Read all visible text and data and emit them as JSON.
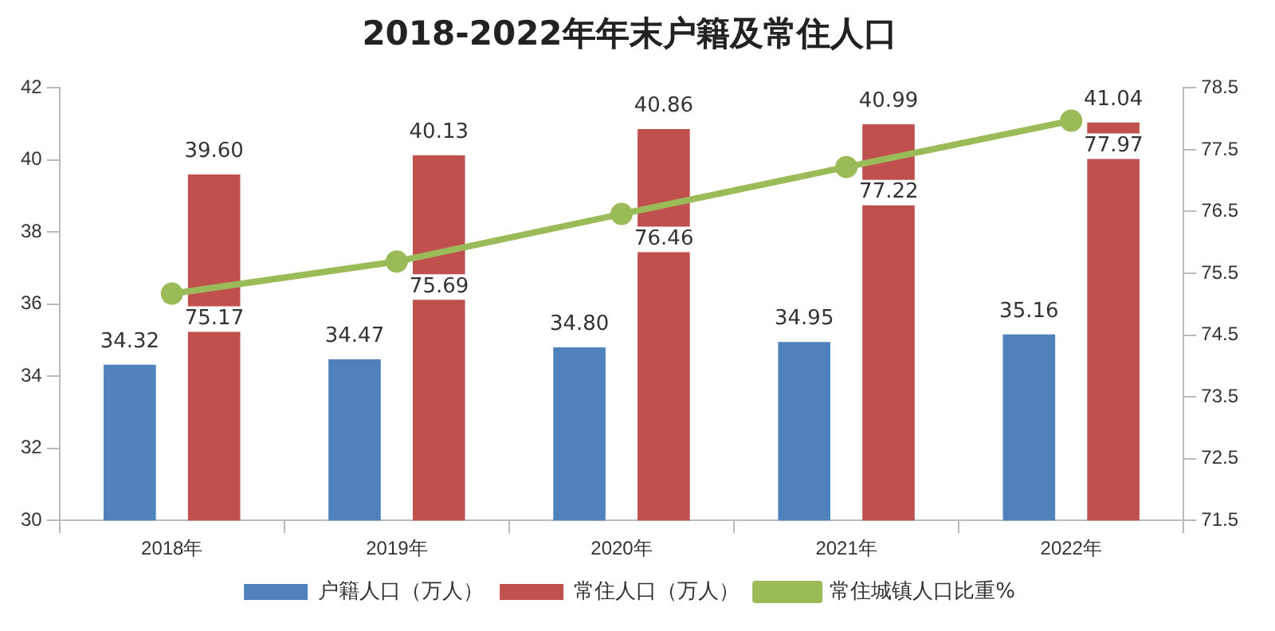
{
  "chart_data": {
    "type": "bar",
    "title": "2018-2022年年末户籍及常住人口",
    "categories": [
      "2018年",
      "2019年",
      "2020年",
      "2021年",
      "2022年"
    ],
    "series": [
      {
        "name": "户籍人口（万人）",
        "color": "#4f81bd",
        "values": [
          34.32,
          34.47,
          34.8,
          34.95,
          35.16
        ],
        "value_labels": [
          "34.32",
          "34.47",
          "34.80",
          "34.95",
          "35.16"
        ]
      },
      {
        "name": "常住人口（万人）",
        "color": "#c0504d",
        "values": [
          39.6,
          40.13,
          40.86,
          40.99,
          41.04
        ],
        "value_labels": [
          "39.60",
          "40.13",
          "40.86",
          "40.99",
          "41.04"
        ]
      },
      {
        "name": "常住城镇人口比重%",
        "type": "line",
        "axis": "y2",
        "color": "#9bbb59",
        "values": [
          75.17,
          75.69,
          76.46,
          77.22,
          77.97
        ],
        "value_labels": [
          "75.17",
          "75.69",
          "76.46",
          "77.22",
          "77.97"
        ]
      }
    ],
    "ylim": [
      30,
      42
    ],
    "yticks": [
      30,
      32,
      34,
      36,
      38,
      40,
      42
    ],
    "y2lim": [
      71.5,
      78.5
    ],
    "y2ticks": [
      71.5,
      72.5,
      73.5,
      74.5,
      75.5,
      76.5,
      77.5,
      78.5
    ],
    "legend": "bottom",
    "grid": false,
    "marker": "circle"
  }
}
